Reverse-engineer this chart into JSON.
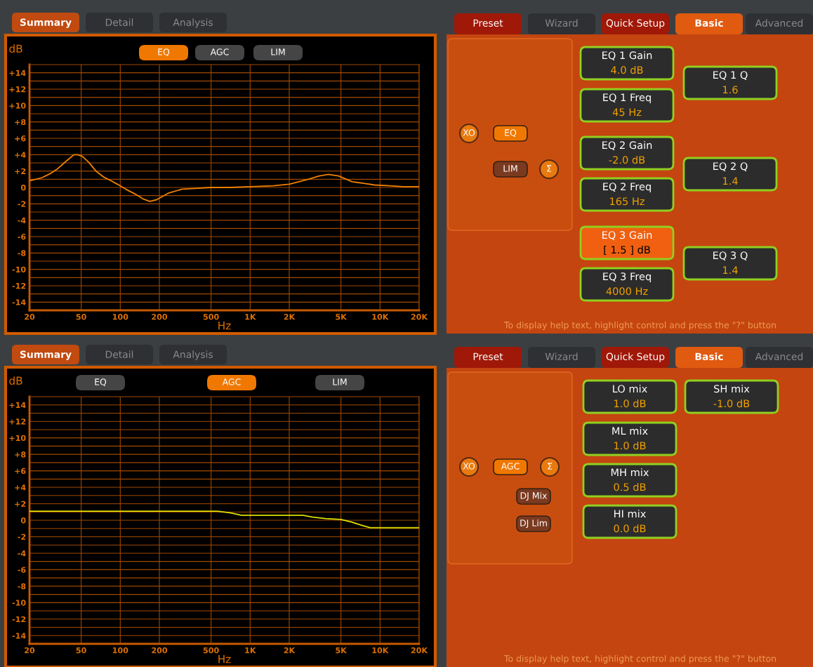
{
  "chart_data": [
    {
      "type": "line",
      "xlabel": "Hz",
      "ylabel": "dB",
      "log": "x",
      "grid": true,
      "line_style": "solid",
      "annotations": [
        "Summary",
        "Detail",
        "Analysis",
        "EQ",
        "AGC",
        "LIM"
      ],
      "xlim": [
        20,
        20000
      ],
      "ylim": [
        -15,
        15
      ],
      "xticks": [
        20,
        50,
        100,
        200,
        500,
        {
          "value": 1000,
          "label": "1K"
        },
        {
          "value": 2000,
          "label": "2K"
        },
        {
          "value": 5000,
          "label": "5K"
        },
        {
          "value": 10000,
          "label": "10K"
        },
        {
          "value": 20000,
          "label": "20K"
        }
      ],
      "yticks": [
        {
          "value": -14,
          "label": "-14"
        },
        {
          "value": -13,
          "label": null
        },
        {
          "value": -12,
          "label": "-12"
        },
        {
          "value": -11,
          "label": null
        },
        {
          "value": -10,
          "label": "-10"
        },
        {
          "value": -9,
          "label": null
        },
        {
          "value": -8,
          "label": "-8"
        },
        {
          "value": -7,
          "label": null
        },
        {
          "value": -6,
          "label": "-6"
        },
        {
          "value": -5,
          "label": null
        },
        {
          "value": -4,
          "label": "-4"
        },
        {
          "value": -3,
          "label": null
        },
        {
          "value": -2,
          "label": "-2"
        },
        {
          "value": -1,
          "label": null
        },
        0,
        {
          "value": 1,
          "label": null
        },
        {
          "value": 2,
          "label": "+2"
        },
        {
          "value": 3,
          "label": null
        },
        {
          "value": 4,
          "label": "+4"
        },
        {
          "value": 5,
          "label": null
        },
        {
          "value": 6,
          "label": "+6"
        },
        {
          "value": 7,
          "label": null
        },
        {
          "value": 8,
          "label": "+8"
        },
        {
          "value": 9,
          "label": null
        },
        {
          "value": 10,
          "label": "+10"
        },
        {
          "value": 11,
          "label": null
        },
        {
          "value": 12,
          "label": "+12"
        },
        {
          "value": 13,
          "label": null
        },
        {
          "value": 14,
          "label": "+14"
        }
      ],
      "series": [
        {
          "color": "#f08000",
          "x": [
            20,
            25,
            29,
            33,
            37,
            41,
            44,
            47,
            51,
            57,
            65,
            74,
            83,
            95,
            110,
            130,
            150,
            169,
            190,
            234,
            300,
            400,
            500,
            700,
            1000,
            1500,
            2000,
            2800,
            3400,
            4000,
            4800,
            6100,
            7500,
            9100,
            12000,
            15000,
            20000
          ],
          "values": [
            0.8,
            1.2,
            1.7,
            2.3,
            3.0,
            3.6,
            4.0,
            4.0,
            3.8,
            3.1,
            2.0,
            1.3,
            0.9,
            0.4,
            -0.2,
            -0.8,
            -1.4,
            -1.7,
            -1.5,
            -0.7,
            -0.2,
            -0.1,
            0,
            0,
            0.1,
            0.2,
            0.4,
            1.0,
            1.4,
            1.6,
            1.4,
            0.7,
            0.5,
            0.3,
            0.2,
            0.1,
            0.1
          ]
        }
      ]
    },
    {
      "type": "other",
      "annotations": [
        "Preset",
        "Wizard",
        "Quick Setup",
        "Basic",
        "Advanced",
        "XO",
        "EQ",
        "LIM",
        "Σ",
        "To display help text, highlight control and press the \"?\" button"
      ],
      "categories": [
        "EQ 1 Gain",
        "EQ 1 Freq",
        "EQ 2 Gain",
        "EQ 2 Freq",
        "EQ 3 Gain",
        "EQ 3 Freq",
        "EQ 1 Q",
        "EQ 2 Q",
        "EQ 3 Q"
      ],
      "value_labels": [
        "4.0 dB",
        "45 Hz",
        "-2.0 dB",
        "165 Hz",
        "[ 1.5 ] dB",
        "4000 Hz",
        "1.6",
        "1.4",
        "1.4"
      ]
    },
    {
      "type": "line",
      "xlabel": "Hz",
      "ylabel": "dB",
      "log": "x",
      "grid": true,
      "line_style": "solid",
      "annotations": [
        "Summary",
        "Detail",
        "Analysis",
        "EQ",
        "AGC",
        "LIM"
      ],
      "xlim": [
        20,
        20000
      ],
      "ylim": [
        -15,
        15
      ],
      "xticks": [
        20,
        50,
        100,
        200,
        500,
        {
          "value": 1000,
          "label": "1K"
        },
        {
          "value": 2000,
          "label": "2K"
        },
        {
          "value": 5000,
          "label": "5K"
        },
        {
          "value": 10000,
          "label": "10K"
        },
        {
          "value": 20000,
          "label": "20K"
        }
      ],
      "yticks": [
        {
          "value": -14,
          "label": "-14"
        },
        {
          "value": -13,
          "label": null
        },
        {
          "value": -12,
          "label": "-12"
        },
        {
          "value": -11,
          "label": null
        },
        {
          "value": -10,
          "label": "-10"
        },
        {
          "value": -9,
          "label": null
        },
        {
          "value": -8,
          "label": "-8"
        },
        {
          "value": -7,
          "label": null
        },
        {
          "value": -6,
          "label": "-6"
        },
        {
          "value": -5,
          "label": null
        },
        {
          "value": -4,
          "label": "-4"
        },
        {
          "value": -3,
          "label": null
        },
        {
          "value": -2,
          "label": "-2"
        },
        {
          "value": -1,
          "label": null
        },
        0,
        {
          "value": 1,
          "label": null
        },
        {
          "value": 2,
          "label": "+2"
        },
        {
          "value": 3,
          "label": null
        },
        {
          "value": 4,
          "label": "+4"
        },
        {
          "value": 5,
          "label": null
        },
        {
          "value": 6,
          "label": "+6"
        },
        {
          "value": 7,
          "label": null
        },
        {
          "value": 8,
          "label": "+8"
        },
        {
          "value": 9,
          "label": null
        },
        {
          "value": 10,
          "label": "+10"
        },
        {
          "value": 11,
          "label": null
        },
        {
          "value": 12,
          "label": "+12"
        },
        {
          "value": 13,
          "label": null
        },
        {
          "value": 14,
          "label": "+14"
        }
      ],
      "series": [
        {
          "color": "#e0e000",
          "x": [
            20,
            560,
            700,
            855,
            2540,
            3000,
            3800,
            5000,
            6000,
            7200,
            8400,
            20000
          ],
          "values": [
            1.1,
            1.1,
            0.9,
            0.6,
            0.6,
            0.4,
            0.2,
            0.1,
            -0.2,
            -0.6,
            -0.9,
            -0.9
          ]
        }
      ]
    },
    {
      "type": "other",
      "annotations": [
        "Preset",
        "Wizard",
        "Quick Setup",
        "Basic",
        "Advanced",
        "XO",
        "AGC",
        "Σ",
        "DJ Mix",
        "DJ Lim",
        "To display help text, highlight control and press the \"?\" button"
      ],
      "categories": [
        "LO mix",
        "ML mix",
        "MH mix",
        "HI mix",
        "SH mix"
      ],
      "value_labels": [
        "1.0 dB",
        "1.0 dB",
        "0.5 dB",
        "0.0 dB",
        "-1.0 dB"
      ]
    }
  ]
}
